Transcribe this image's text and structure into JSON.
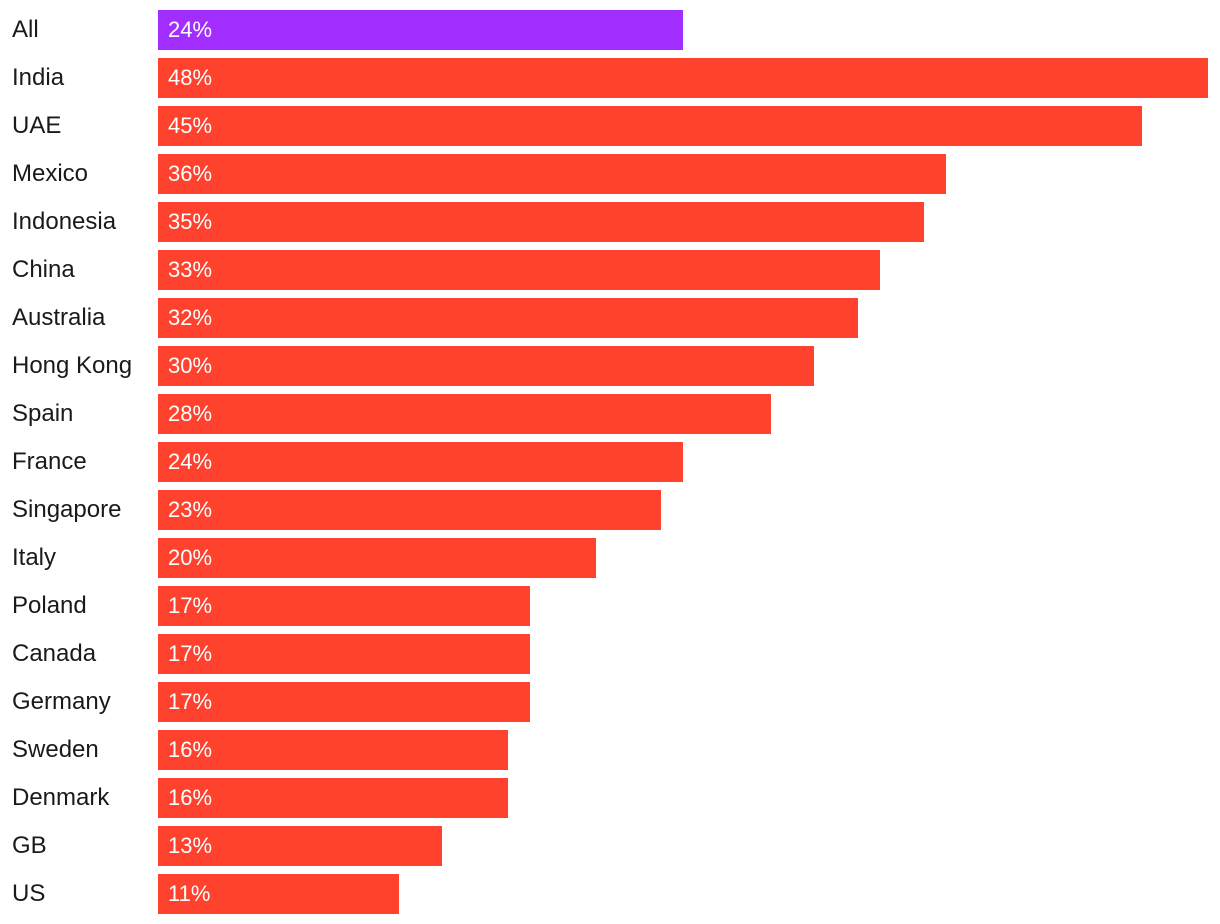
{
  "chart_data": {
    "type": "bar",
    "orientation": "horizontal",
    "categories": [
      "All",
      "India",
      "UAE",
      "Mexico",
      "Indonesia",
      "China",
      "Australia",
      "Hong Kong",
      "Spain",
      "France",
      "Singapore",
      "Italy",
      "Poland",
      "Canada",
      "Germany",
      "Sweden",
      "Denmark",
      "GB",
      "US"
    ],
    "values": [
      24,
      48,
      45,
      36,
      35,
      33,
      32,
      30,
      28,
      24,
      23,
      20,
      17,
      17,
      17,
      16,
      16,
      13,
      11
    ],
    "value_labels": [
      "24%",
      "48%",
      "45%",
      "36%",
      "35%",
      "33%",
      "32%",
      "30%",
      "28%",
      "24%",
      "23%",
      "20%",
      "17%",
      "17%",
      "17%",
      "16%",
      "16%",
      "13%",
      "11%"
    ],
    "value_unit": "%",
    "xlim": [
      0,
      48
    ],
    "highlight_category": "All",
    "colors": {
      "highlight": "#a12dff",
      "default": "#ff422d"
    },
    "grid": false,
    "legend": "none"
  }
}
